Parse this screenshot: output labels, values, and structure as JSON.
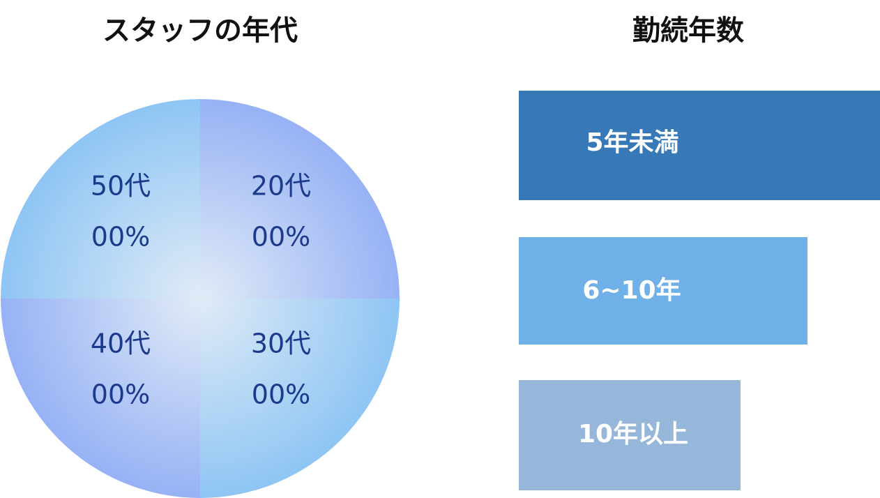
{
  "left": {
    "title": "スタッフの年代",
    "segments": [
      {
        "label": "50代",
        "value": "00%"
      },
      {
        "label": "20代",
        "value": "00%"
      },
      {
        "label": "40代",
        "value": "00%"
      },
      {
        "label": "30代",
        "value": "00%"
      }
    ]
  },
  "right": {
    "title": "勤続年数",
    "bars": [
      {
        "label": "5年未満"
      },
      {
        "label": "6~10年"
      },
      {
        "label": "10年以上"
      }
    ]
  }
}
